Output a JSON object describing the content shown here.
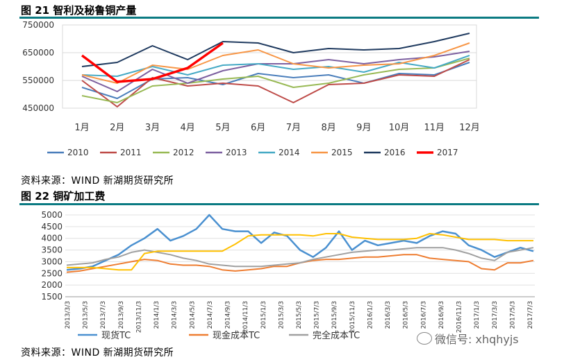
{
  "figure1": {
    "title": "图 21  智利及秘鲁铜产量",
    "source": "资料来源：WIND 新湖期货研究所"
  },
  "figure2": {
    "title": "图 22  铜矿加工费",
    "source": "资料来源：WIND 新湖期货研究所"
  },
  "watermark": {
    "text": "微信号: xhqhyjs",
    "icon": "wechat-icon"
  },
  "chart_data": [
    {
      "type": "line",
      "title": "图 21  智利及秘鲁铜产量",
      "categories": [
        "1月",
        "2月",
        "3月",
        "4月",
        "5月",
        "6月",
        "7月",
        "8月",
        "9月",
        "10月",
        "11月",
        "12月"
      ],
      "ylim": [
        450000,
        750000
      ],
      "yticks": [
        "450000",
        "550000",
        "650000",
        "750000"
      ],
      "grid": true,
      "legend_position": "bottom",
      "series": [
        {
          "name": "2010",
          "color": "#4a7ebb",
          "width": 2,
          "values": [
            525000,
            485000,
            555000,
            560000,
            535000,
            575000,
            560000,
            570000,
            540000,
            575000,
            570000,
            615000
          ]
        },
        {
          "name": "2011",
          "color": "#be4b48",
          "width": 2,
          "values": [
            550000,
            455000,
            560000,
            530000,
            540000,
            530000,
            470000,
            535000,
            540000,
            570000,
            565000,
            625000
          ]
        },
        {
          "name": "2012",
          "color": "#98b954",
          "width": 2,
          "values": [
            495000,
            470000,
            530000,
            540000,
            555000,
            565000,
            525000,
            540000,
            570000,
            590000,
            595000,
            630000
          ]
        },
        {
          "name": "2013",
          "color": "#7d60a0",
          "width": 2,
          "values": [
            565000,
            510000,
            590000,
            540000,
            585000,
            610000,
            610000,
            625000,
            610000,
            625000,
            635000,
            655000
          ]
        },
        {
          "name": "2014",
          "color": "#46aac5",
          "width": 2,
          "values": [
            570000,
            565000,
            600000,
            570000,
            605000,
            610000,
            590000,
            600000,
            580000,
            615000,
            595000,
            640000
          ]
        },
        {
          "name": "2015",
          "color": "#f79646",
          "width": 2,
          "values": [
            570000,
            540000,
            605000,
            590000,
            640000,
            660000,
            610000,
            595000,
            605000,
            610000,
            640000,
            685000
          ]
        },
        {
          "name": "2016",
          "color": "#1f3a5f",
          "width": 2,
          "values": [
            600000,
            615000,
            675000,
            625000,
            690000,
            685000,
            650000,
            665000,
            660000,
            665000,
            690000,
            720000
          ]
        },
        {
          "name": "2017",
          "color": "#ff0000",
          "width": 3.5,
          "values": [
            640000,
            545000,
            555000,
            595000,
            685000,
            null,
            null,
            null,
            null,
            null,
            null,
            null
          ]
        }
      ]
    },
    {
      "type": "line",
      "title": "图 22  铜矿加工费",
      "x_tick_labels": [
        "2013/3/3",
        "2013/5/3",
        "2013/7/3",
        "2013/9/3",
        "2013/11/3",
        "2014/1/3",
        "2014/3/3",
        "2014/5/3",
        "2014/7/3",
        "2014/9/3",
        "2014/11/3",
        "2015/1/3",
        "2015/3/3",
        "2015/5/3",
        "2015/7/3",
        "2015/9/3",
        "2015/11/3",
        "2016/1/3",
        "2016/3/3",
        "2016/5/3",
        "2016/7/3",
        "2016/9/3",
        "2016/11/3",
        "2017/1/3",
        "2017/3/3",
        "2017/5/3",
        "2017/7/3"
      ],
      "ylim": [
        1500,
        5000
      ],
      "yticks": [
        "1500",
        "2000",
        "2500",
        "3000",
        "3500",
        "4000",
        "4500",
        "5000"
      ],
      "grid": true,
      "legend_position": "bottom",
      "series": [
        {
          "name": "现货TC",
          "color": "#4a90d0",
          "width": 2.5,
          "values": [
            2650,
            2700,
            2800,
            3050,
            3300,
            3700,
            4000,
            4400,
            3900,
            4100,
            4400,
            5000,
            4400,
            4300,
            4300,
            3800,
            4250,
            4100,
            3500,
            3200,
            3600,
            4300,
            3500,
            3900,
            3700,
            3800,
            3900,
            3800,
            4100,
            4300,
            4200,
            3700,
            3500,
            3200,
            3400,
            3600,
            3450
          ]
        },
        {
          "name": "现金成本TC",
          "color": "#ee7d31",
          "width": 2,
          "values": [
            2550,
            2600,
            2700,
            2800,
            2900,
            3000,
            3100,
            3050,
            2900,
            2850,
            2850,
            2800,
            2650,
            2600,
            2650,
            2700,
            2800,
            2800,
            2950,
            3050,
            3100,
            3100,
            3150,
            3200,
            3200,
            3250,
            3300,
            3300,
            3150,
            3100,
            3050,
            3000,
            2700,
            2650,
            2950,
            2950,
            3050
          ]
        },
        {
          "name": "完全成本TC",
          "color": "#a0a0a0",
          "width": 2,
          "values": [
            2850,
            2900,
            2950,
            3100,
            3200,
            3400,
            3500,
            3400,
            3300,
            3150,
            3050,
            2900,
            2850,
            2800,
            2800,
            2800,
            2850,
            2900,
            2950,
            3100,
            3200,
            3300,
            3400,
            3450,
            3500,
            3500,
            3550,
            3600,
            3600,
            3600,
            3500,
            3350,
            3150,
            3050,
            3400,
            3500,
            3600
          ]
        },
        {
          "name": "",
          "color": "#ffc000",
          "width": 2,
          "values": [
            2750,
            2750,
            2750,
            2700,
            2650,
            2650,
            3350,
            3450,
            3450,
            3450,
            3450,
            3450,
            3450,
            3750,
            4100,
            4150,
            4150,
            4150,
            4150,
            4100,
            4200,
            4200,
            4050,
            4000,
            3950,
            3950,
            3950,
            4000,
            4200,
            4150,
            4050,
            3950,
            3950,
            3950,
            3900,
            3900,
            3900
          ]
        }
      ]
    }
  ]
}
